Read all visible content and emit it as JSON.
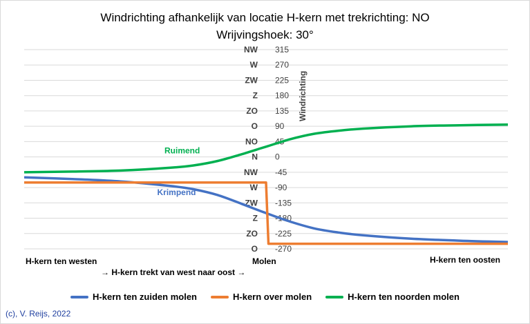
{
  "chart_data": {
    "type": "line",
    "title": "Windrichting afhankelijk van locatie H-kern met trekrichting: NO",
    "subtitle": "Wrijvingshoek: 30°",
    "ylabel": "Windrichting",
    "ylim": [
      -270,
      315
    ],
    "yticks": [
      {
        "value": 315,
        "dir": "NW"
      },
      {
        "value": 270,
        "dir": "W"
      },
      {
        "value": 225,
        "dir": "ZW"
      },
      {
        "value": 180,
        "dir": "Z"
      },
      {
        "value": 135,
        "dir": "ZO"
      },
      {
        "value": 90,
        "dir": "O"
      },
      {
        "value": 45,
        "dir": "NO"
      },
      {
        "value": 0,
        "dir": "N"
      },
      {
        "value": -45,
        "dir": "NW"
      },
      {
        "value": -90,
        "dir": "W"
      },
      {
        "value": -135,
        "dir": "ZW"
      },
      {
        "value": -180,
        "dir": "Z"
      },
      {
        "value": -225,
        "dir": "ZO"
      },
      {
        "value": -270,
        "dir": "O"
      }
    ],
    "xlim": [
      -10,
      10
    ],
    "x_labels": {
      "left": "H-kern ten westen",
      "center": "Molen",
      "right": "H-kern ten oosten",
      "arrow_text": "→ H-kern trekt van west naar oost →"
    },
    "grid": "horizontal",
    "legend_position": "bottom",
    "series": [
      {
        "name": "H-kern ten zuiden molen",
        "color": "#4472C4",
        "annotation": "Krimpend",
        "x": [
          -10,
          -8,
          -6,
          -4,
          -3,
          -2,
          -1,
          0,
          1,
          2,
          3,
          4,
          6,
          8,
          10
        ],
        "y": [
          -60,
          -65,
          -72,
          -85,
          -95,
          -112,
          -138,
          -165,
          -190,
          -210,
          -222,
          -230,
          -240,
          -246,
          -250
        ]
      },
      {
        "name": "H-kern over molen",
        "color": "#ED7D31",
        "x": [
          -10,
          -0.1,
          0,
          0.1,
          10
        ],
        "y": [
          -75,
          -75,
          -75,
          -255,
          -255
        ]
      },
      {
        "name": "H-kern ten noorden molen",
        "color": "#00B050",
        "annotation": "Ruimend",
        "x": [
          -10,
          -8,
          -6,
          -4,
          -3,
          -2,
          -1,
          0,
          1,
          2,
          3,
          4,
          6,
          8,
          10
        ],
        "y": [
          -45,
          -43,
          -40,
          -32,
          -25,
          -12,
          8,
          30,
          52,
          68,
          77,
          83,
          90,
          93,
          95
        ]
      }
    ]
  },
  "copyright": "(c), V. Reijs, 2022"
}
